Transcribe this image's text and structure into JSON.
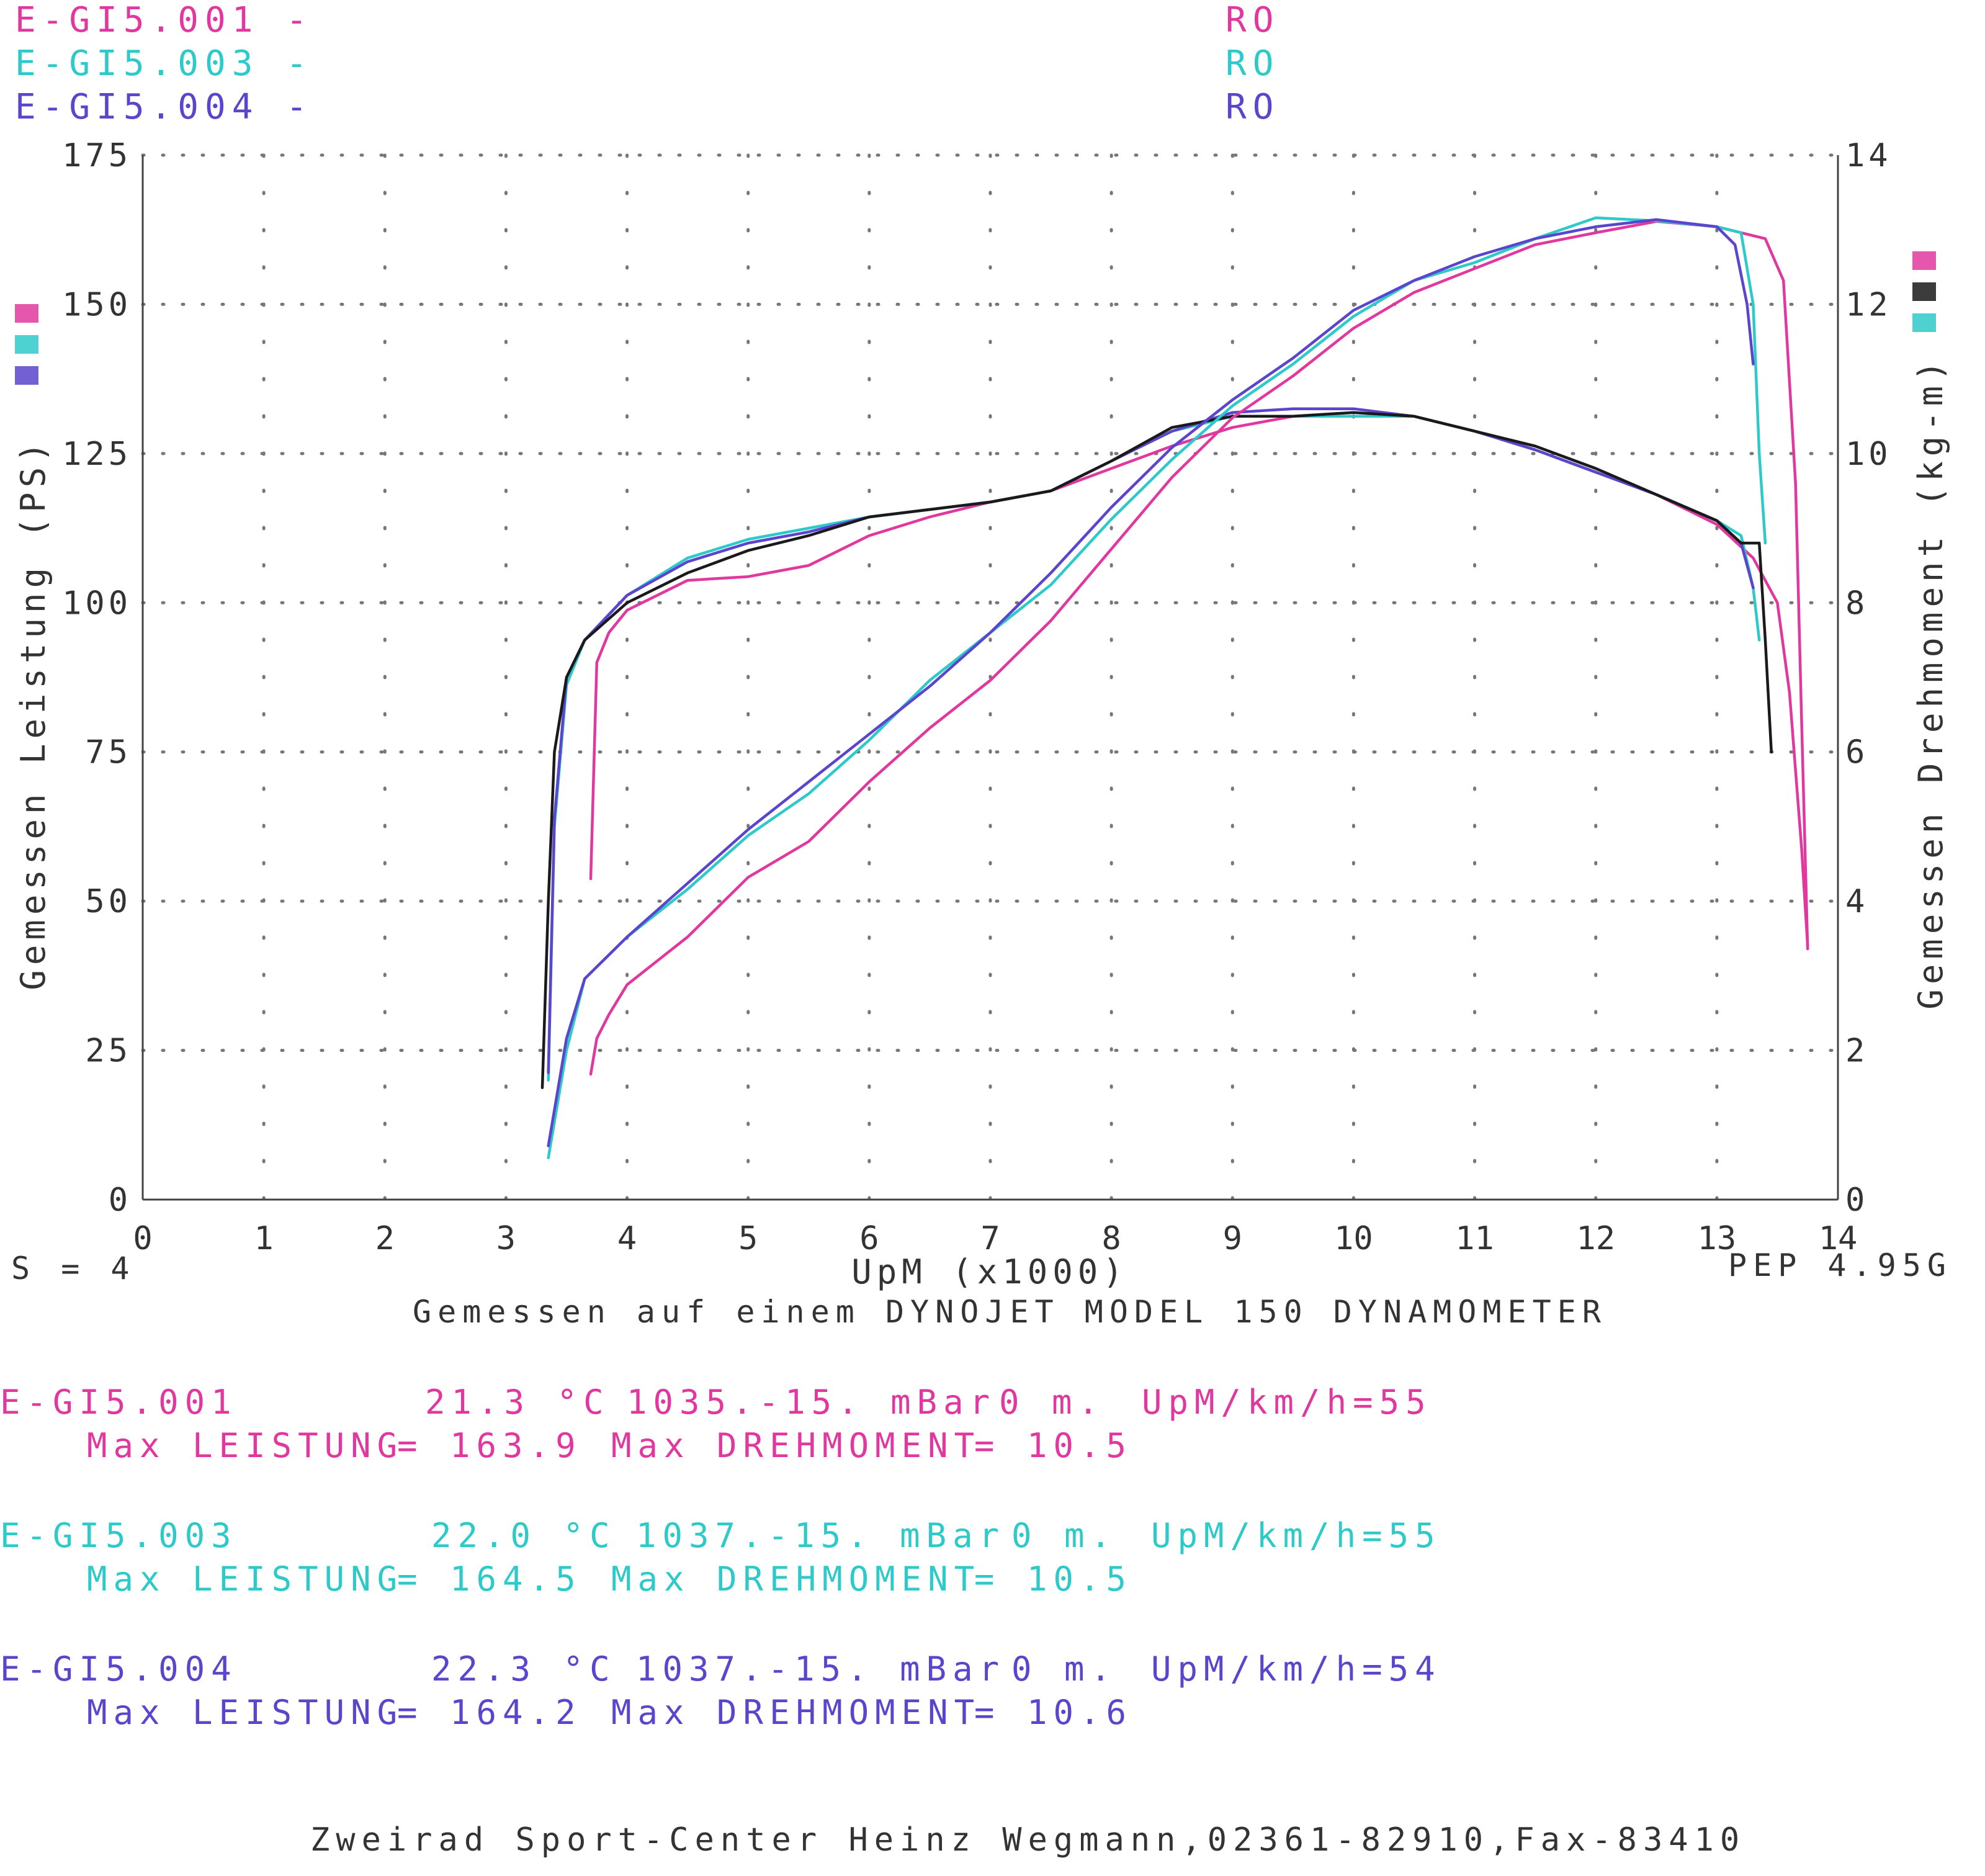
{
  "legend": [
    {
      "name": "E-GI5.001",
      "dash": "-",
      "ro": "RO",
      "color": "#e0389f"
    },
    {
      "name": "E-GI5.003",
      "dash": "-",
      "ro": "RO",
      "color": "#2ec9c9"
    },
    {
      "name": "E-GI5.004",
      "dash": "-",
      "ro": "RO",
      "color": "#5a45cc"
    }
  ],
  "footer": {
    "smoothing": "S = 4",
    "version": "PEP 4.95G",
    "dyno_note": "Gemessen auf einem DYNOJET MODEL 150 DYNAMOMETER",
    "shop": "Zweirad Sport-Center Heinz Wegmann,02361-82910,Fax-83410"
  },
  "runs": [
    {
      "name": "E-GI5.001",
      "temp": "21.3 °C",
      "pressure": "1035.-15. mBar",
      "altitude": "0 m.",
      "ratio": "UpM/km/h=55",
      "max_power_label": "Max LEISTUNG",
      "max_power": "= 163.9",
      "max_torque_label": "Max DREHMOMENT",
      "max_torque": "= 10.5",
      "color": "#e0389f"
    },
    {
      "name": "E-GI5.003",
      "temp": "22.0 °C",
      "pressure": "1037.-15. mBar",
      "altitude": "0 m.",
      "ratio": "UpM/km/h=55",
      "max_power_label": "Max LEISTUNG",
      "max_power": "= 164.5",
      "max_torque_label": "Max DREHMOMENT",
      "max_torque": "= 10.5",
      "color": "#2ec9c9"
    },
    {
      "name": "E-GI5.004",
      "temp": "22.3 °C",
      "pressure": "1037.-15. mBar",
      "altitude": "0 m.",
      "ratio": "UpM/km/h=54",
      "max_power_label": "Max LEISTUNG",
      "max_power": "= 164.2",
      "max_torque_label": "Max DREHMOMENT",
      "max_torque": "= 10.6",
      "color": "#5a45cc"
    }
  ],
  "chart_data": {
    "type": "line",
    "xlabel": "UpM (x1000)",
    "ylabel": "Gemessen Leistung (PS)",
    "y2label": "Gemessen Drehmoment (kg-m)",
    "xlim": [
      0,
      14
    ],
    "ylim": [
      0,
      175
    ],
    "y2lim": [
      0,
      14
    ],
    "xticks": [
      0,
      1,
      2,
      3,
      4,
      5,
      6,
      7,
      8,
      9,
      10,
      11,
      12,
      13,
      14
    ],
    "yticks": [
      0,
      25,
      50,
      75,
      100,
      125,
      150,
      175
    ],
    "y2ticks": [
      0,
      2,
      4,
      6,
      8,
      10,
      12,
      14
    ],
    "grid": true,
    "power_series": [
      {
        "color": "#e0389f",
        "x": [
          3.7,
          3.75,
          3.85,
          4.0,
          4.5,
          5.0,
          5.5,
          6.0,
          6.5,
          7.0,
          7.5,
          8.0,
          8.5,
          9.0,
          9.5,
          10.0,
          10.5,
          11.0,
          11.5,
          12.0,
          12.5,
          13.0,
          13.4,
          13.55,
          13.65,
          13.7,
          13.75
        ],
        "y": [
          21,
          27,
          31,
          36,
          44,
          54,
          60,
          70,
          79,
          87,
          97,
          109,
          121,
          131,
          138,
          146,
          152,
          156,
          160,
          162,
          163.9,
          163,
          161,
          154,
          120,
          80,
          42
        ]
      },
      {
        "color": "#2ec9c9",
        "x": [
          3.35,
          3.4,
          3.5,
          3.65,
          4.0,
          4.5,
          5.0,
          5.5,
          6.0,
          6.5,
          7.0,
          7.5,
          8.0,
          8.5,
          9.0,
          9.5,
          10.0,
          10.5,
          11.0,
          11.5,
          12.0,
          12.5,
          13.0,
          13.2,
          13.3,
          13.35,
          13.4
        ],
        "y": [
          7,
          13,
          25,
          37,
          44,
          52,
          61,
          68,
          77,
          87,
          95,
          103,
          114,
          124,
          133,
          140,
          148,
          154,
          157,
          161,
          164.5,
          164,
          163,
          162,
          150,
          125,
          110
        ]
      },
      {
        "color": "#5a45cc",
        "x": [
          3.35,
          3.4,
          3.5,
          3.65,
          4.0,
          4.5,
          5.0,
          5.5,
          6.0,
          6.5,
          7.0,
          7.5,
          8.0,
          8.5,
          9.0,
          9.5,
          10.0,
          10.5,
          11.0,
          11.5,
          12.0,
          12.5,
          13.0,
          13.15,
          13.25,
          13.3
        ],
        "y": [
          9,
          15,
          27,
          37,
          44,
          53,
          62,
          70,
          78,
          86,
          95,
          105,
          116,
          126,
          134,
          141,
          149,
          154,
          158,
          161,
          163,
          164.2,
          163,
          160,
          150,
          140
        ]
      }
    ],
    "torque_series": [
      {
        "color": "#e0389f",
        "x": [
          3.7,
          3.75,
          3.85,
          4.0,
          4.5,
          5.0,
          5.5,
          6.0,
          6.5,
          7.0,
          7.5,
          8.0,
          8.5,
          9.0,
          9.5,
          10.0,
          10.5,
          11.0,
          11.5,
          12.0,
          12.5,
          13.0,
          13.3,
          13.5,
          13.6,
          13.7,
          13.75
        ],
        "y": [
          4.3,
          7.2,
          7.6,
          7.9,
          8.3,
          8.35,
          8.5,
          8.9,
          9.15,
          9.35,
          9.5,
          9.8,
          10.1,
          10.35,
          10.5,
          10.5,
          10.5,
          10.3,
          10.05,
          9.75,
          9.45,
          9.05,
          8.6,
          8.0,
          6.8,
          4.7,
          3.4
        ]
      },
      {
        "color": "#2ec9c9",
        "x": [
          3.35,
          3.4,
          3.5,
          3.65,
          4.0,
          4.5,
          5.0,
          5.5,
          6.0,
          6.5,
          7.0,
          7.5,
          8.0,
          8.5,
          9.0,
          9.5,
          10.0,
          10.5,
          11.0,
          11.5,
          12.0,
          12.5,
          13.0,
          13.2,
          13.3,
          13.35
        ],
        "y": [
          1.6,
          5.0,
          6.9,
          7.5,
          8.1,
          8.6,
          8.85,
          9.0,
          9.15,
          9.25,
          9.35,
          9.5,
          9.9,
          10.3,
          10.5,
          10.5,
          10.5,
          10.5,
          10.3,
          10.1,
          9.8,
          9.45,
          9.1,
          8.9,
          8.2,
          7.5
        ]
      },
      {
        "color": "#5a45cc",
        "x": [
          3.35,
          3.4,
          3.5,
          3.65,
          4.0,
          4.5,
          5.0,
          5.5,
          6.0,
          6.5,
          7.0,
          7.5,
          8.0,
          8.5,
          9.0,
          9.5,
          10.0,
          10.5,
          11.0,
          11.5,
          12.0,
          12.5,
          13.0,
          13.2,
          13.3
        ],
        "y": [
          1.7,
          5.1,
          7.0,
          7.5,
          8.1,
          8.55,
          8.8,
          8.95,
          9.15,
          9.25,
          9.35,
          9.5,
          9.9,
          10.3,
          10.55,
          10.6,
          10.6,
          10.5,
          10.3,
          10.05,
          9.75,
          9.45,
          9.1,
          8.8,
          8.2
        ]
      },
      {
        "color": "#1a1a1a",
        "x": [
          3.3,
          3.35,
          3.4,
          3.5,
          3.65,
          4.0,
          4.5,
          5.0,
          5.5,
          6.0,
          6.5,
          7.0,
          7.5,
          8.0,
          8.5,
          9.0,
          9.5,
          10.0,
          10.5,
          11.0,
          11.5,
          12.0,
          12.5,
          13.0,
          13.2,
          13.35,
          13.4,
          13.45
        ],
        "y": [
          1.5,
          4.0,
          6.0,
          7.0,
          7.5,
          8.0,
          8.4,
          8.7,
          8.9,
          9.15,
          9.25,
          9.35,
          9.5,
          9.9,
          10.35,
          10.5,
          10.5,
          10.55,
          10.5,
          10.3,
          10.1,
          9.8,
          9.45,
          9.1,
          8.8,
          8.8,
          7.5,
          6.0
        ]
      }
    ]
  }
}
